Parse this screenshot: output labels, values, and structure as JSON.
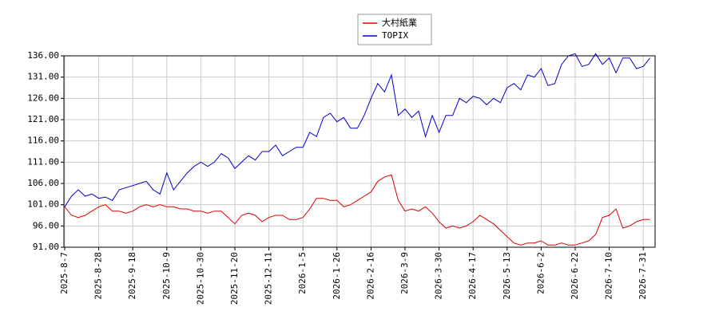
{
  "chart_data": {
    "type": "line",
    "categories": [
      "2025-8-7",
      null,
      null,
      null,
      null,
      "2025-8-28",
      null,
      null,
      null,
      null,
      "2025-9-18",
      null,
      null,
      null,
      null,
      "2025-10-9",
      null,
      null,
      null,
      null,
      "2025-10-30",
      null,
      null,
      null,
      null,
      "2025-11-20",
      null,
      null,
      null,
      null,
      "2025-12-11",
      null,
      null,
      null,
      null,
      "2026-1-5",
      null,
      null,
      null,
      null,
      "2026-1-26",
      null,
      null,
      null,
      null,
      "2026-2-16",
      null,
      null,
      null,
      null,
      "2026-3-9",
      null,
      null,
      null,
      null,
      "2026-3-30",
      null,
      null,
      null,
      null,
      "2026-4-17",
      null,
      null,
      null,
      null,
      "2026-5-13",
      null,
      null,
      null,
      null,
      "2026-6-2",
      null,
      null,
      null,
      null,
      "2026-6-22",
      null,
      null,
      null,
      null,
      "2026-7-10",
      null,
      null,
      null,
      null,
      "2026-7-31",
      null
    ],
    "series": [
      {
        "name": "大村紙業",
        "color": "#dd0000",
        "values": [
          100.5,
          98.5,
          98,
          98.5,
          99.5,
          100.5,
          101,
          99.5,
          99.5,
          99,
          99.5,
          100.5,
          101,
          100.5,
          101,
          100.5,
          100.5,
          100,
          100,
          99.5,
          99.5,
          99,
          99.5,
          99.5,
          98,
          96.5,
          98.5,
          99,
          98.5,
          97,
          98,
          98.5,
          98.5,
          97.5,
          97.5,
          98,
          100,
          102.5,
          102.5,
          102,
          102,
          100.5,
          101,
          102,
          103,
          104,
          106.5,
          107.5,
          108,
          102,
          99.5,
          100,
          99.5,
          100.5,
          99,
          97,
          95.5,
          96,
          95.5,
          96,
          97,
          98.5,
          97.5,
          96.5,
          95,
          93.5,
          92,
          91.5,
          92,
          92,
          92.5,
          91.5,
          91.5,
          92,
          91.5,
          91.5,
          92,
          92.5,
          94,
          98,
          98.5,
          100,
          95.5,
          96,
          97,
          97.5,
          97.5
        ]
      },
      {
        "name": "TOPIX",
        "color": "#0000cc",
        "values": [
          100.5,
          103,
          104.5,
          103,
          103.5,
          102.5,
          102.8,
          102,
          104.5,
          105,
          105.5,
          106,
          106.5,
          104.5,
          103.5,
          108.5,
          104.5,
          106.5,
          108.5,
          110,
          111,
          110,
          111,
          113,
          112,
          109.5,
          111,
          112.5,
          111.5,
          113.5,
          113.5,
          115,
          112.5,
          113.5,
          114.5,
          114.5,
          118,
          117,
          121.5,
          122.5,
          120.5,
          121.5,
          119,
          119,
          122,
          126,
          129.5,
          127.5,
          131.5,
          122,
          123.5,
          121.5,
          123,
          117,
          122,
          118,
          122,
          122,
          126,
          125,
          126.5,
          126,
          124.5,
          126,
          125,
          128.5,
          129.5,
          128,
          131.5,
          131,
          133,
          129,
          129.5,
          134,
          136,
          136.5,
          133.5,
          134,
          136.5,
          134,
          135.5,
          132,
          135.5,
          135.5,
          133,
          133.5,
          135.5
        ]
      }
    ],
    "ylim": [
      91,
      136
    ],
    "yticks": [
      {
        "value": 91,
        "label": "91.00"
      },
      {
        "value": 96,
        "label": "96.00"
      },
      {
        "value": 101,
        "label": "101.00"
      },
      {
        "value": 106,
        "label": "106.00"
      },
      {
        "value": 111,
        "label": "111.00"
      },
      {
        "value": 116,
        "label": "116.00"
      },
      {
        "value": 121,
        "label": "121.00"
      },
      {
        "value": 126,
        "label": "126.00"
      },
      {
        "value": 131,
        "label": "131.00"
      },
      {
        "value": 136,
        "label": "136.00"
      }
    ],
    "grid": true
  }
}
